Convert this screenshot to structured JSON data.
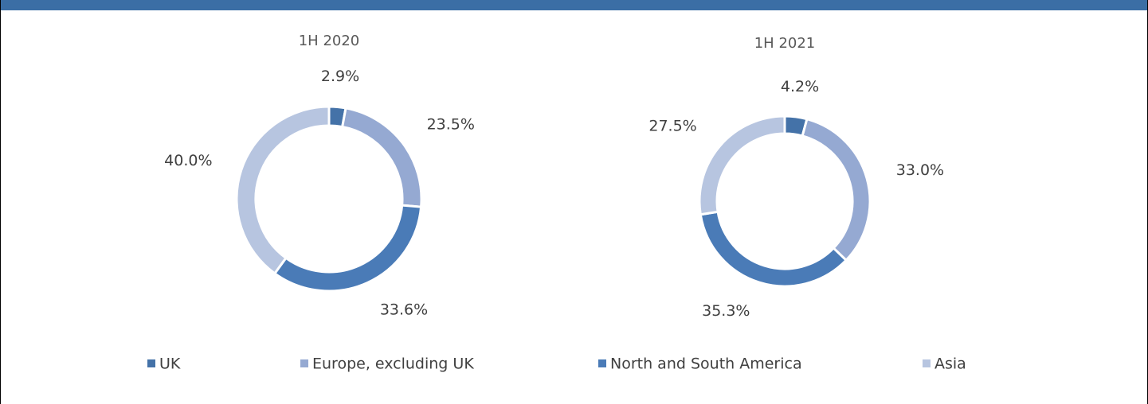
{
  "chart_data": [
    {
      "type": "pie",
      "title": "1H 2020",
      "categories": [
        "UK",
        "Europe, excluding UK",
        "North and South America",
        "Asia"
      ],
      "colors": [
        "#4472a8",
        "#95a9d2",
        "#4a7bb7",
        "#b7c5e0"
      ],
      "values": [
        2.9,
        23.5,
        33.6,
        40.0
      ],
      "value_labels": [
        "2.9%",
        "23.5%",
        "33.6%",
        "40.0%"
      ]
    },
    {
      "type": "pie",
      "title": "1H 2021",
      "values": [
        4.2,
        33.0,
        35.3,
        27.5
      ],
      "value_labels": [
        "4.2%",
        "33.0%",
        "35.3%",
        "27.5%"
      ]
    }
  ]
}
